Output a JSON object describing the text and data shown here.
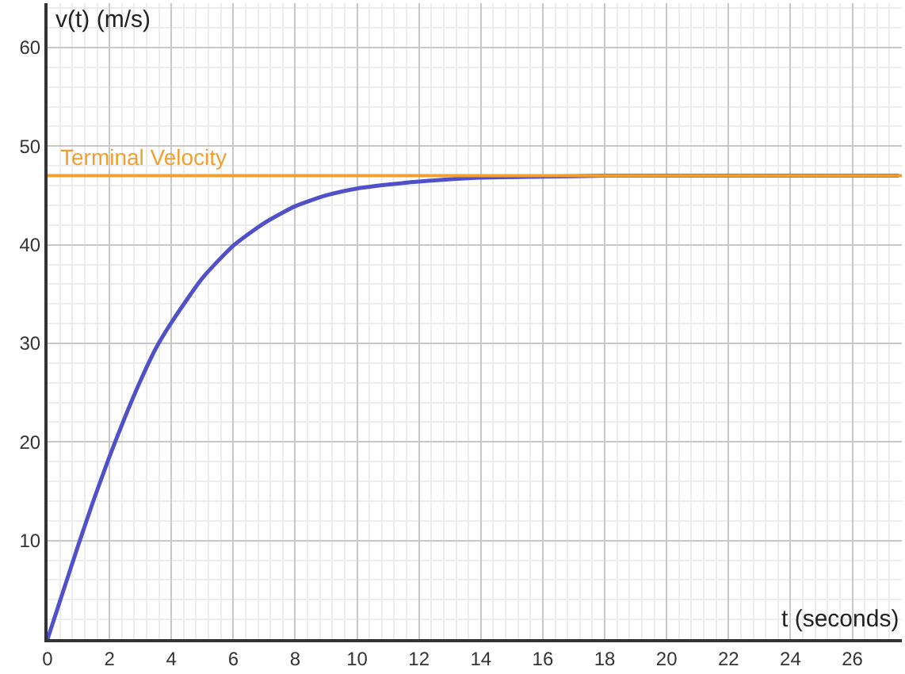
{
  "chart_data": {
    "type": "line",
    "xlabel": "t (seconds)",
    "ylabel": "v(t) (m/s)",
    "x": [
      0,
      0.5,
      1,
      1.5,
      2,
      2.5,
      3,
      3.5,
      4,
      5,
      6,
      7,
      8,
      9,
      10,
      11,
      12,
      14,
      16,
      18,
      22,
      27.5
    ],
    "series": [
      {
        "color": "#5050c8",
        "values": [
          0,
          4.8,
          9.6,
          14.2,
          18.5,
          22.5,
          26.2,
          29.5,
          32.1,
          36.6,
          39.9,
          42.2,
          43.9,
          45.0,
          45.7,
          46.1,
          46.4,
          46.8,
          46.9,
          47,
          47,
          47
        ]
      }
    ],
    "xlim": [
      0,
      27.6
    ],
    "ylim": [
      0,
      64.5
    ],
    "xticks": [
      0,
      2,
      4,
      6,
      8,
      10,
      12,
      14,
      16,
      18,
      20,
      22,
      24,
      26
    ],
    "yticks": [
      10,
      20,
      30,
      40,
      50,
      60
    ],
    "ref_lines": [
      {
        "axis": "y",
        "value": 47,
        "label": "Terminal Velocity",
        "color": "#f0a030"
      }
    ],
    "grid": true,
    "legend": false,
    "marker": "none",
    "line_style": "solid"
  }
}
